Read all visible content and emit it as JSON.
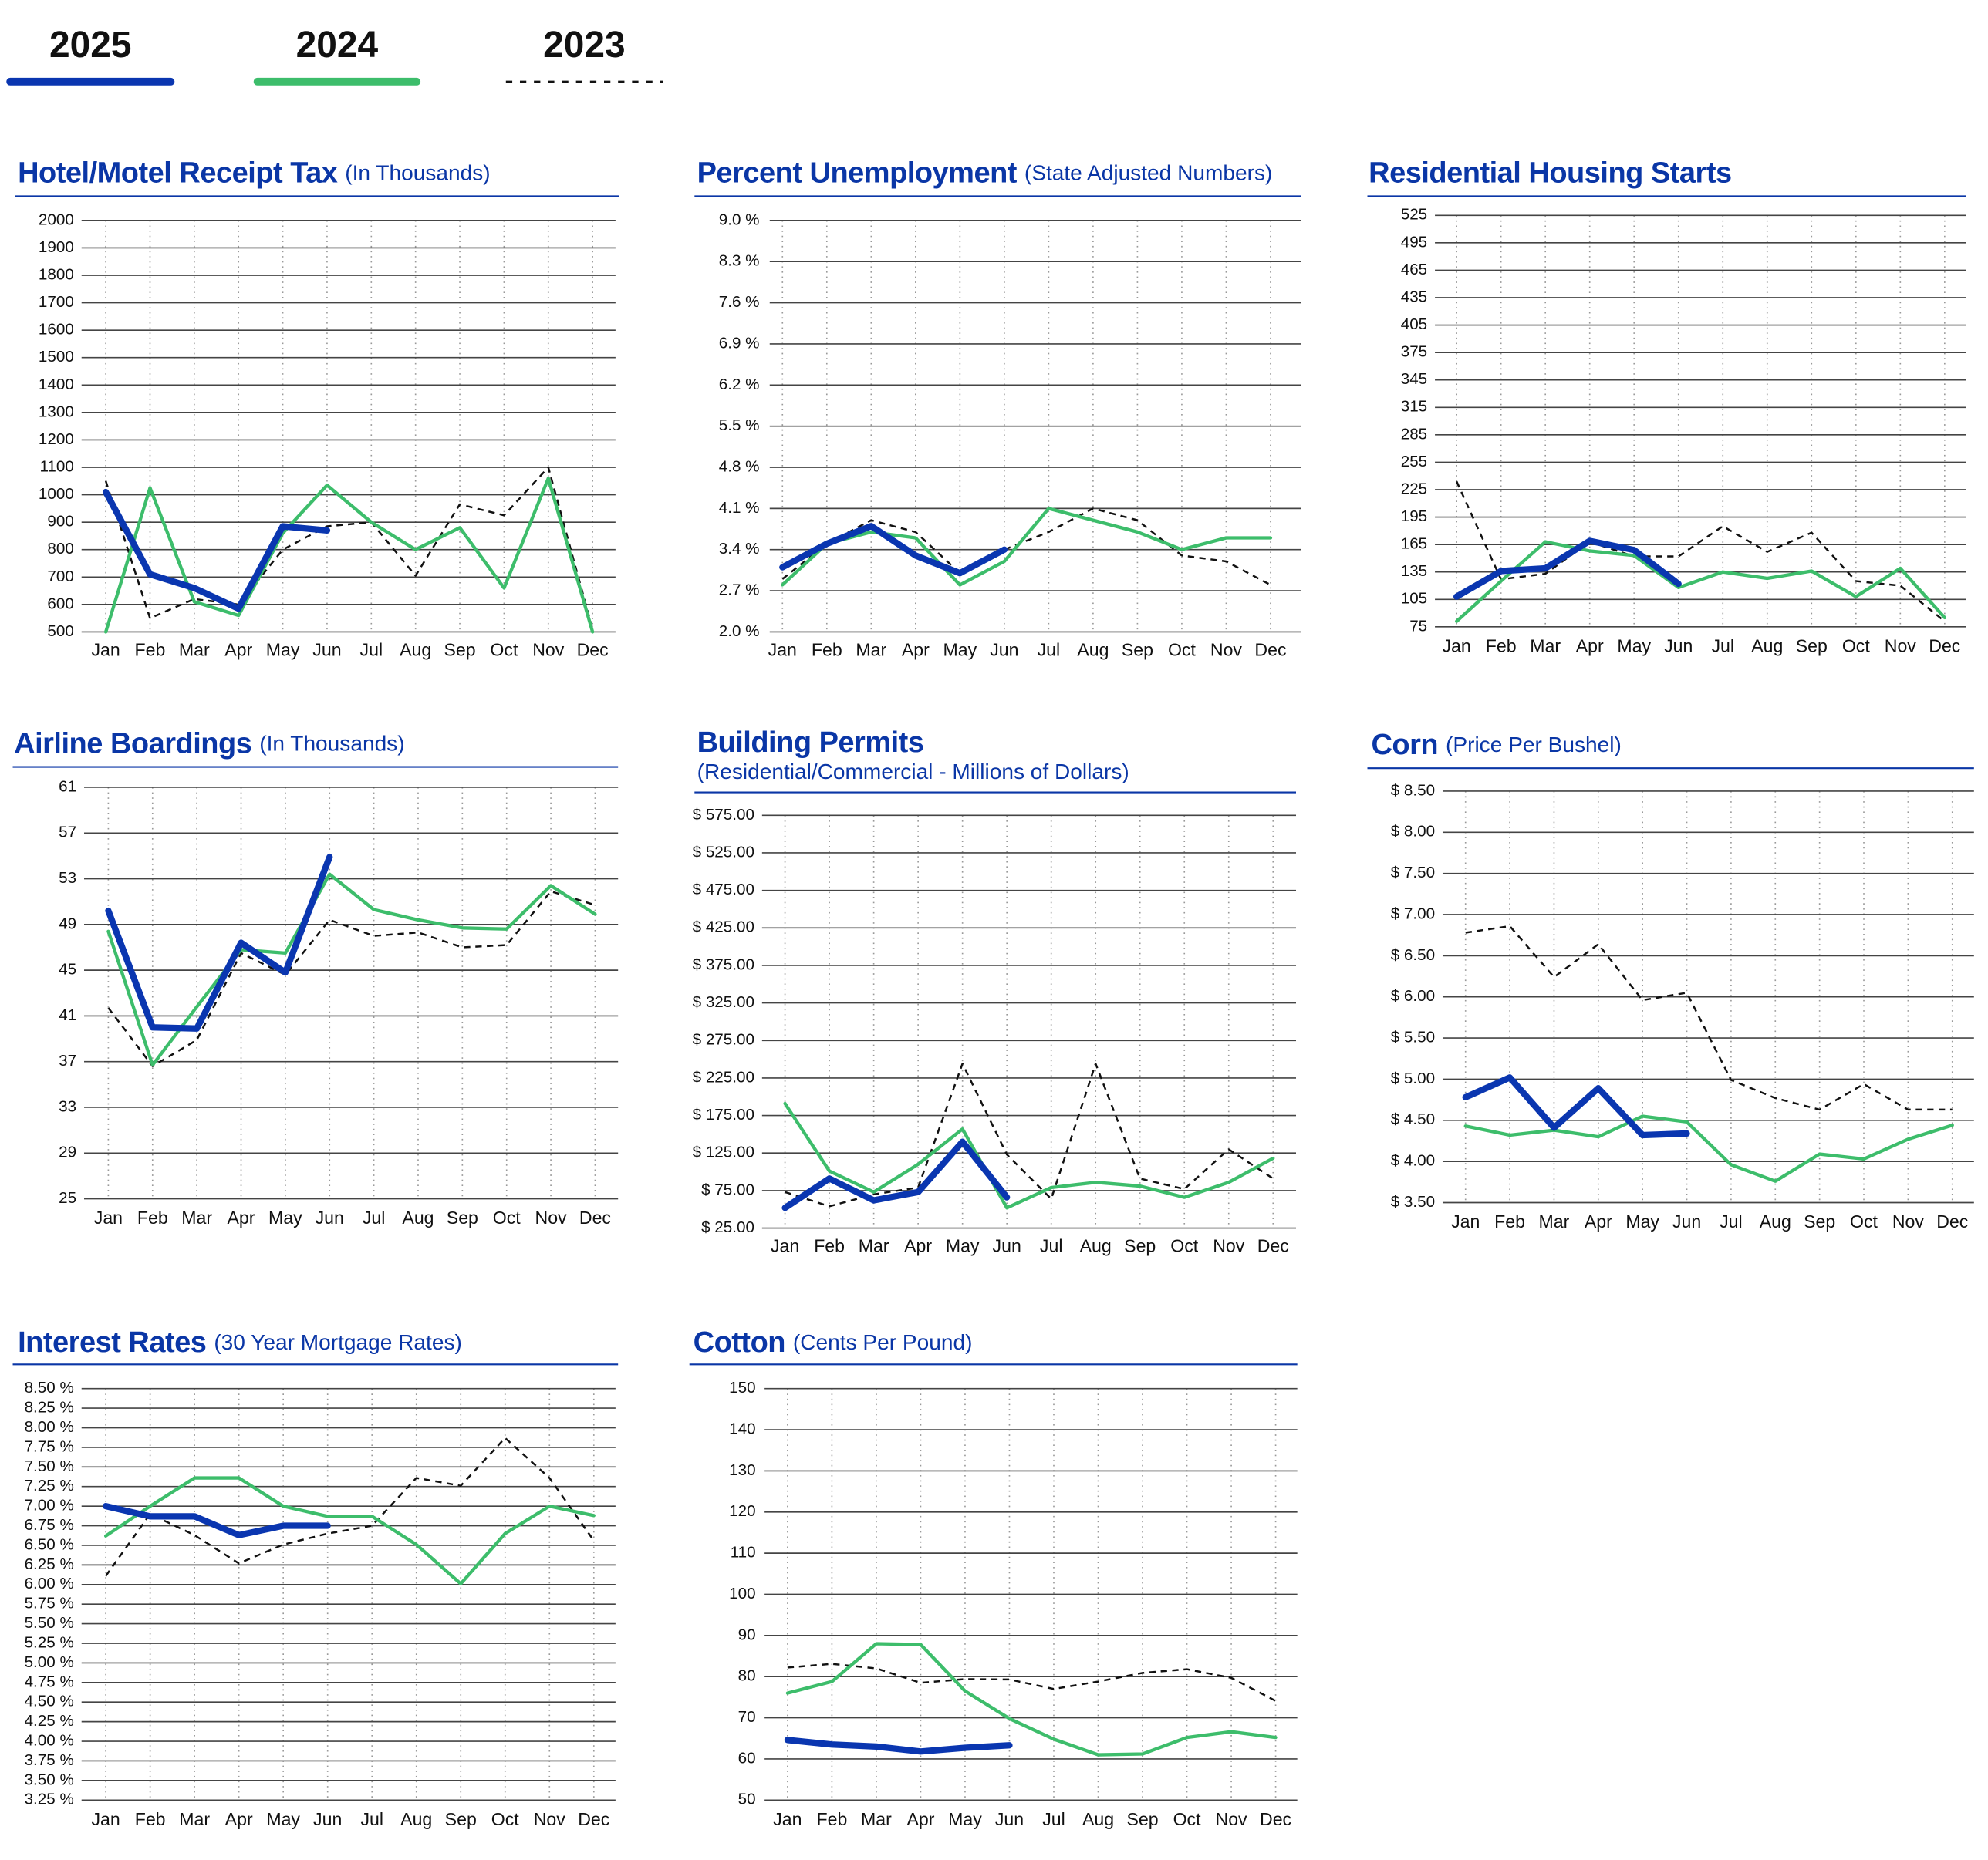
{
  "chart_data": [
    {
      "type": "line",
      "title": "Hotel/Motel Receipt Tax",
      "subtitle": "(In Thousands)",
      "categories": [
        "Jan",
        "Feb",
        "Mar",
        "Apr",
        "May",
        "Jun",
        "Jul",
        "Aug",
        "Sep",
        "Oct",
        "Nov",
        "Dec"
      ],
      "series": [
        {
          "name": "2025",
          "color": "#0a36b0",
          "line_style": "solid",
          "values": [
            1010,
            710,
            660,
            585,
            885,
            870,
            null,
            null,
            null,
            null,
            null,
            null
          ]
        },
        {
          "name": "2024",
          "color": "#3dbd6b",
          "line_style": "solid",
          "values": [
            500,
            1025,
            610,
            560,
            860,
            1035,
            900,
            800,
            880,
            660,
            1060,
            500
          ]
        },
        {
          "name": "2023",
          "color": "#111111",
          "line_style": "dashed",
          "values": [
            1050,
            550,
            620,
            600,
            800,
            885,
            900,
            705,
            965,
            925,
            1100,
            510
          ]
        }
      ],
      "ylim": [
        500,
        2000
      ],
      "yticks": [
        500,
        600,
        700,
        800,
        900,
        1000,
        1100,
        1200,
        1300,
        1400,
        1500,
        1600,
        1700,
        1800,
        1900,
        2000
      ],
      "grid": true,
      "legend": "top"
    },
    {
      "type": "line",
      "title": "Percent Unemployment",
      "subtitle": "(State Adjusted Numbers)",
      "categories": [
        "Jan",
        "Feb",
        "Mar",
        "Apr",
        "May",
        "Jun",
        "Jul",
        "Aug",
        "Sep",
        "Oct",
        "Nov",
        "Dec"
      ],
      "series": [
        {
          "name": "2025",
          "color": "#0a36b0",
          "line_style": "solid",
          "values": [
            3.1,
            3.5,
            3.8,
            3.3,
            3.0,
            3.4,
            null,
            null,
            null,
            null,
            null,
            null
          ]
        },
        {
          "name": "2024",
          "color": "#3dbd6b",
          "line_style": "solid",
          "values": [
            2.8,
            3.5,
            3.7,
            3.6,
            2.8,
            3.2,
            4.1,
            3.9,
            3.7,
            3.4,
            3.6,
            3.6
          ]
        },
        {
          "name": "2023",
          "color": "#111111",
          "line_style": "dashed",
          "values": [
            2.9,
            3.5,
            3.9,
            3.7,
            3.0,
            3.4,
            3.7,
            4.1,
            3.9,
            3.3,
            3.2,
            2.8
          ]
        }
      ],
      "ylim": [
        2.0,
        9.0
      ],
      "yticks": [
        {
          "value": 2.0,
          "label": "2.0 %"
        },
        {
          "value": 2.7,
          "label": "2.7 %"
        },
        {
          "value": 3.4,
          "label": "3.4 %"
        },
        {
          "value": 4.1,
          "label": "4.1 %"
        },
        {
          "value": 4.8,
          "label": "4.8 %"
        },
        {
          "value": 5.5,
          "label": "5.5 %"
        },
        {
          "value": 6.2,
          "label": "6.2 %"
        },
        {
          "value": 6.9,
          "label": "6.9 %"
        },
        {
          "value": 7.6,
          "label": "7.6 %"
        },
        {
          "value": 8.3,
          "label": "8.3 %"
        },
        {
          "value": 9.0,
          "label": "9.0 %"
        }
      ],
      "grid": true
    },
    {
      "type": "line",
      "title": "Residential Housing Starts",
      "categories": [
        "Jan",
        "Feb",
        "Mar",
        "Apr",
        "May",
        "Jun",
        "Jul",
        "Aug",
        "Sep",
        "Oct",
        "Nov",
        "Dec"
      ],
      "series": [
        {
          "name": "2025",
          "color": "#0a36b0",
          "line_style": "solid",
          "values": [
            108,
            136,
            139,
            169,
            159,
            122,
            null,
            null,
            null,
            null,
            null,
            null
          ]
        },
        {
          "name": "2024",
          "color": "#3dbd6b",
          "line_style": "solid",
          "values": [
            81,
            125,
            168,
            158,
            153,
            118,
            135,
            128,
            136,
            108,
            139,
            85
          ]
        },
        {
          "name": "2023",
          "color": "#111111",
          "line_style": "dashed",
          "values": [
            234,
            127,
            133,
            168,
            152,
            152,
            185,
            157,
            178,
            125,
            120,
            81
          ]
        }
      ],
      "ylim": [
        75,
        525
      ],
      "yticks": [
        75,
        105,
        135,
        165,
        195,
        225,
        255,
        285,
        315,
        345,
        375,
        405,
        435,
        465,
        495,
        525
      ],
      "grid": true
    },
    {
      "type": "line",
      "title": "Airline Boardings",
      "subtitle": "(In Thousands)",
      "categories": [
        "Jan",
        "Feb",
        "Mar",
        "Apr",
        "May",
        "Jun",
        "Jul",
        "Aug",
        "Sep",
        "Oct",
        "Nov",
        "Dec"
      ],
      "series": [
        {
          "name": "2025",
          "color": "#0a36b0",
          "line_style": "solid",
          "values": [
            50.2,
            40.0,
            39.9,
            47.4,
            44.8,
            54.9,
            null,
            null,
            null,
            null,
            null,
            null
          ]
        },
        {
          "name": "2024",
          "color": "#3dbd6b",
          "line_style": "solid",
          "values": [
            48.4,
            36.7,
            41.8,
            46.8,
            46.5,
            53.4,
            50.3,
            49.4,
            48.7,
            48.6,
            52.4,
            49.9
          ]
        },
        {
          "name": "2023",
          "color": "#111111",
          "line_style": "dashed",
          "values": [
            41.7,
            36.6,
            38.9,
            46.5,
            44.6,
            49.4,
            48.0,
            48.3,
            47.0,
            47.2,
            51.9,
            50.7
          ]
        }
      ],
      "ylim": [
        25,
        61
      ],
      "yticks": [
        25,
        29,
        33,
        37,
        41,
        45,
        49,
        53,
        57,
        61
      ],
      "grid": true
    },
    {
      "type": "line",
      "title": "Building Permits",
      "subtitle": "(Residential/Commercial - Millions of Dollars)",
      "categories": [
        "Jan",
        "Feb",
        "Mar",
        "Apr",
        "May",
        "Jun",
        "Jul",
        "Aug",
        "Sep",
        "Oct",
        "Nov",
        "Dec"
      ],
      "series": [
        {
          "name": "2025",
          "color": "#0a36b0",
          "line_style": "solid",
          "values": [
            52,
            91,
            62,
            73,
            140,
            66,
            null,
            null,
            null,
            null,
            null,
            null
          ]
        },
        {
          "name": "2024",
          "color": "#3dbd6b",
          "line_style": "solid",
          "values": [
            191,
            101,
            73,
            110,
            157,
            52,
            79,
            86,
            81,
            66,
            86,
            118
          ]
        },
        {
          "name": "2023",
          "color": "#111111",
          "line_style": "dashed",
          "values": [
            73,
            54,
            70,
            79,
            244,
            123,
            64,
            244,
            91,
            77,
            130,
            91
          ]
        }
      ],
      "ylim": [
        25,
        575
      ],
      "yticks": [
        {
          "value": 25,
          "label": "$ 25.00"
        },
        {
          "value": 75,
          "label": "$ 75.00"
        },
        {
          "value": 125,
          "label": "$ 125.00"
        },
        {
          "value": 175,
          "label": "$ 175.00"
        },
        {
          "value": 225,
          "label": "$ 225.00"
        },
        {
          "value": 275,
          "label": "$ 275.00"
        },
        {
          "value": 325,
          "label": "$ 325.00"
        },
        {
          "value": 375,
          "label": "$ 375.00"
        },
        {
          "value": 425,
          "label": "$ 425.00"
        },
        {
          "value": 475,
          "label": "$ 475.00"
        },
        {
          "value": 525,
          "label": "$ 525.00"
        },
        {
          "value": 575,
          "label": "$ 575.00"
        }
      ],
      "grid": true
    },
    {
      "type": "line",
      "title": "Corn",
      "subtitle": "(Price Per Bushel)",
      "categories": [
        "Jan",
        "Feb",
        "Mar",
        "Apr",
        "May",
        "Jun",
        "Jul",
        "Aug",
        "Sep",
        "Oct",
        "Nov",
        "Dec"
      ],
      "series": [
        {
          "name": "2025",
          "color": "#0a36b0",
          "line_style": "solid",
          "values": [
            4.78,
            5.02,
            4.41,
            4.89,
            4.32,
            4.34,
            null,
            null,
            null,
            null,
            null,
            null
          ]
        },
        {
          "name": "2024",
          "color": "#3dbd6b",
          "line_style": "solid",
          "values": [
            4.43,
            4.32,
            4.38,
            4.3,
            4.55,
            4.48,
            3.96,
            3.76,
            4.09,
            4.03,
            4.27,
            4.44
          ]
        },
        {
          "name": "2023",
          "color": "#111111",
          "line_style": "dashed",
          "values": [
            6.78,
            6.86,
            6.24,
            6.64,
            5.96,
            6.05,
            4.99,
            4.77,
            4.63,
            4.94,
            4.63,
            4.63
          ]
        }
      ],
      "ylim": [
        3.5,
        8.5
      ],
      "yticks": [
        {
          "value": 3.5,
          "label": "$ 3.50"
        },
        {
          "value": 4.0,
          "label": "$ 4.00"
        },
        {
          "value": 4.5,
          "label": "$ 4.50"
        },
        {
          "value": 5.0,
          "label": "$ 5.00"
        },
        {
          "value": 5.5,
          "label": "$ 5.50"
        },
        {
          "value": 6.0,
          "label": "$ 6.00"
        },
        {
          "value": 6.5,
          "label": "$ 6.50"
        },
        {
          "value": 7.0,
          "label": "$ 7.00"
        },
        {
          "value": 7.5,
          "label": "$ 7.50"
        },
        {
          "value": 8.0,
          "label": "$ 8.00"
        },
        {
          "value": 8.5,
          "label": "$ 8.50"
        }
      ],
      "grid": true
    },
    {
      "type": "line",
      "title": "Interest Rates",
      "subtitle": "(30 Year Mortgage Rates)",
      "categories": [
        "Jan",
        "Feb",
        "Mar",
        "Apr",
        "May",
        "Jun",
        "Jul",
        "Aug",
        "Sep",
        "Oct",
        "Nov",
        "Dec"
      ],
      "series": [
        {
          "name": "2025",
          "color": "#0a36b0",
          "line_style": "solid",
          "values": [
            7.0,
            6.87,
            6.87,
            6.63,
            6.75,
            6.75,
            null,
            null,
            null,
            null,
            null,
            null
          ]
        },
        {
          "name": "2024",
          "color": "#3dbd6b",
          "line_style": "solid",
          "values": [
            6.62,
            7.0,
            7.36,
            7.36,
            7.0,
            6.87,
            6.87,
            6.51,
            6.01,
            6.65,
            7.0,
            6.88
          ]
        },
        {
          "name": "2023",
          "color": "#111111",
          "line_style": "dashed",
          "values": [
            6.11,
            6.9,
            6.63,
            6.27,
            6.51,
            6.65,
            6.75,
            7.36,
            7.26,
            7.87,
            7.36,
            6.56
          ]
        }
      ],
      "ylim": [
        3.25,
        8.5
      ],
      "yticks": [
        {
          "value": 3.25,
          "label": "3.25 %"
        },
        {
          "value": 3.5,
          "label": "3.50 %"
        },
        {
          "value": 3.75,
          "label": "3.75 %"
        },
        {
          "value": 4.0,
          "label": "4.00 %"
        },
        {
          "value": 4.25,
          "label": "4.25 %"
        },
        {
          "value": 4.5,
          "label": "4.50 %"
        },
        {
          "value": 4.75,
          "label": "4.75 %"
        },
        {
          "value": 5.0,
          "label": "5.00 %"
        },
        {
          "value": 5.25,
          "label": "5.25 %"
        },
        {
          "value": 5.5,
          "label": "5.50 %"
        },
        {
          "value": 5.75,
          "label": "5.75 %"
        },
        {
          "value": 6.0,
          "label": "6.00 %"
        },
        {
          "value": 6.25,
          "label": "6.25 %"
        },
        {
          "value": 6.5,
          "label": "6.50 %"
        },
        {
          "value": 6.75,
          "label": "6.75 %"
        },
        {
          "value": 7.0,
          "label": "7.00 %"
        },
        {
          "value": 7.25,
          "label": "7.25 %"
        },
        {
          "value": 7.5,
          "label": "7.50 %"
        },
        {
          "value": 7.75,
          "label": "7.75 %"
        },
        {
          "value": 8.0,
          "label": "8.00 %"
        },
        {
          "value": 8.25,
          "label": "8.25 %"
        },
        {
          "value": 8.5,
          "label": "8.50 %"
        }
      ],
      "grid": true
    },
    {
      "type": "line",
      "title": "Cotton",
      "subtitle": "(Cents Per Pound)",
      "categories": [
        "Jan",
        "Feb",
        "Mar",
        "Apr",
        "May",
        "Jun",
        "Jul",
        "Aug",
        "Sep",
        "Oct",
        "Nov",
        "Dec"
      ],
      "series": [
        {
          "name": "2025",
          "color": "#0a36b0",
          "line_style": "solid",
          "values": [
            64.6,
            63.5,
            63.0,
            61.8,
            62.7,
            63.3,
            null,
            null,
            null,
            null,
            null,
            null
          ]
        },
        {
          "name": "2024",
          "color": "#3dbd6b",
          "line_style": "solid",
          "values": [
            76.0,
            78.8,
            88.0,
            87.8,
            76.5,
            69.8,
            64.8,
            61.0,
            61.2,
            65.2,
            66.6,
            65.2
          ]
        },
        {
          "name": "2023",
          "color": "#111111",
          "line_style": "dashed",
          "values": [
            82.2,
            83.1,
            82.0,
            78.5,
            79.4,
            79.3,
            77.0,
            78.8,
            80.9,
            81.8,
            79.7,
            74.1
          ]
        }
      ],
      "ylim": [
        50,
        150
      ],
      "yticks": [
        50,
        60,
        70,
        80,
        90,
        100,
        110,
        120,
        130,
        140,
        150
      ],
      "grid": true
    }
  ]
}
